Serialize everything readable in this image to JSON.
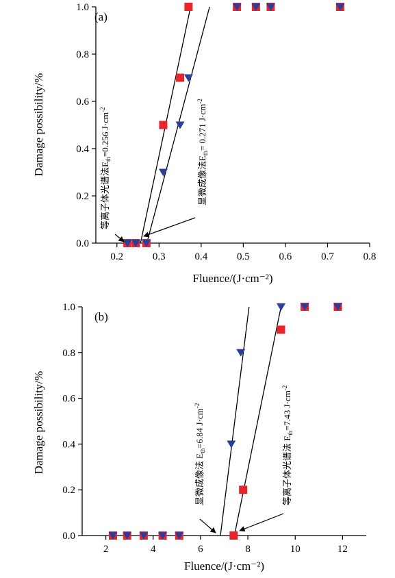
{
  "colors": {
    "spectroscopy": "#e8252b",
    "microscopy": "#2a3f9c",
    "axis": "#000000"
  },
  "chart_data": [
    {
      "type": "scatter",
      "panel": "(a)",
      "xlabel": "Fluence/(J·cm⁻²)",
      "ylabel": "Damage possibility/%",
      "xlim": [
        0.15,
        0.8
      ],
      "ylim": [
        0,
        1.0
      ],
      "xticks": [
        "0.2",
        "0.3",
        "0.4",
        "0.5",
        "0.6",
        "0.7",
        "0.8"
      ],
      "yticks": [
        "0.0",
        "0.2",
        "0.4",
        "0.6",
        "0.8",
        "1.0"
      ],
      "grid": false,
      "series": [
        {
          "marker": "square",
          "points": [
            [
              0.225,
              0
            ],
            [
              0.245,
              0
            ],
            [
              0.27,
              0
            ],
            [
              0.31,
              0.5
            ],
            [
              0.35,
              0.7
            ],
            [
              0.37,
              1.0
            ],
            [
              0.485,
              1.0
            ],
            [
              0.53,
              1.0
            ],
            [
              0.565,
              1.0
            ],
            [
              0.73,
              1.0
            ]
          ]
        },
        {
          "marker": "triangle-down",
          "points": [
            [
              0.225,
              0
            ],
            [
              0.245,
              0
            ],
            [
              0.27,
              0
            ],
            [
              0.31,
              0.3
            ],
            [
              0.35,
              0.5
            ],
            [
              0.37,
              0.7
            ],
            [
              0.485,
              1.0
            ],
            [
              0.53,
              1.0
            ],
            [
              0.565,
              1.0
            ],
            [
              0.73,
              1.0
            ]
          ]
        }
      ],
      "fit_lines": [
        {
          "from": [
            0.256,
            0
          ],
          "to": [
            0.375,
            1.0
          ]
        },
        {
          "from": [
            0.271,
            0
          ],
          "to": [
            0.42,
            1.0
          ]
        }
      ],
      "annotations": [
        {
          "text_main": "等离子体光谱法E",
          "text_sub": "th",
          "text_tail": "=0.256 J·cm",
          "text_sup": "-2",
          "near": [
            0.175,
            0.42
          ],
          "arrow_to": [
            0.256,
            0.0
          ]
        },
        {
          "text_main": "显微成像法E",
          "text_sub": "th",
          "text_tail": "= 0.271 J·cm",
          "text_sup": "-2",
          "near": [
            0.4,
            0.3
          ],
          "arrow_to": [
            0.271,
            0.0
          ]
        }
      ]
    },
    {
      "type": "scatter",
      "panel": "(b)",
      "xlabel": "Fluence/(J·cm⁻²)",
      "ylabel": "Damage possibility/%",
      "xlim": [
        1,
        13
      ],
      "ylim": [
        0,
        1.0
      ],
      "xticks": [
        "2",
        "4",
        "6",
        "8",
        "10",
        "12"
      ],
      "yticks": [
        "0.0",
        "0.2",
        "0.4",
        "0.6",
        "0.8",
        "1.0"
      ],
      "grid": false,
      "series": [
        {
          "marker": "square",
          "points": [
            [
              2.3,
              0
            ],
            [
              2.9,
              0
            ],
            [
              3.6,
              0
            ],
            [
              4.4,
              0
            ],
            [
              5.1,
              0
            ],
            [
              7.4,
              0
            ],
            [
              7.8,
              0.2
            ],
            [
              9.4,
              0.9
            ],
            [
              10.4,
              1.0
            ],
            [
              11.8,
              1.0
            ]
          ]
        },
        {
          "marker": "triangle-down",
          "points": [
            [
              2.3,
              0
            ],
            [
              2.9,
              0
            ],
            [
              3.6,
              0
            ],
            [
              4.4,
              0
            ],
            [
              5.1,
              0
            ],
            [
              7.3,
              0.4
            ],
            [
              7.7,
              0.8
            ],
            [
              9.4,
              1.0
            ],
            [
              10.4,
              1.0
            ],
            [
              11.8,
              1.0
            ]
          ]
        }
      ],
      "fit_lines": [
        {
          "from": [
            6.84,
            0
          ],
          "to": [
            8.05,
            1.0
          ]
        },
        {
          "from": [
            7.43,
            0
          ],
          "to": [
            9.4,
            1.0
          ]
        }
      ],
      "annotations": [
        {
          "text_main": "显微成像法 E",
          "text_sub": "th",
          "text_tail": "=6.84 J·cm",
          "text_sup": "-2",
          "near": [
            6.1,
            0.34
          ],
          "arrow_to": [
            6.84,
            0.0
          ]
        },
        {
          "text_main": "等离子体光谱法 E",
          "text_sub": "th",
          "text_tail": "=7.43 J·cm",
          "text_sup": "-2",
          "near": [
            9.6,
            0.42
          ],
          "arrow_to": [
            7.43,
            0.0
          ]
        }
      ]
    }
  ]
}
